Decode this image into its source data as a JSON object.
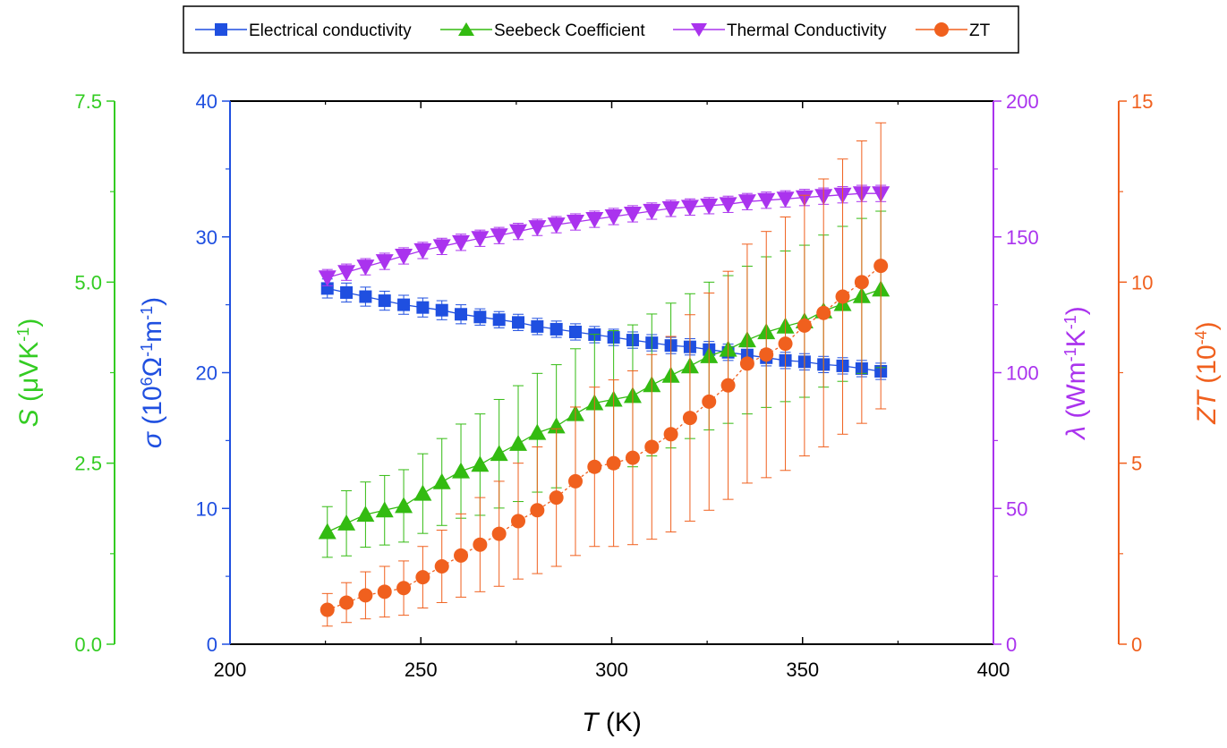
{
  "chart_data": {
    "type": "scatter",
    "x": [
      225.5,
      230.5,
      235.5,
      240.5,
      245.5,
      250.5,
      255.5,
      260.5,
      265.5,
      270.5,
      275.5,
      280.5,
      285.5,
      290.5,
      295.5,
      300.5,
      305.5,
      310.5,
      315.5,
      320.5,
      325.5,
      330.5,
      335.5,
      340.5,
      345.5,
      350.5,
      355.5,
      360.5,
      365.5,
      370.5
    ],
    "xlabel": {
      "italic": "T",
      "rest": " (K)"
    },
    "xlim": [
      200,
      400
    ],
    "xticks": [
      "200",
      "250",
      "300",
      "350",
      "400"
    ],
    "series": [
      {
        "name": "Electrical conductivity",
        "color": "#1f4fe0",
        "marker": "square",
        "axis": "sigma",
        "values": [
          26.2,
          25.9,
          25.6,
          25.3,
          25.0,
          24.8,
          24.6,
          24.3,
          24.1,
          23.9,
          23.7,
          23.4,
          23.2,
          23.0,
          22.8,
          22.6,
          22.4,
          22.2,
          22.0,
          21.9,
          21.7,
          21.5,
          21.3,
          21.1,
          20.9,
          20.8,
          20.6,
          20.5,
          20.3,
          20.1
        ],
        "errors": [
          0.7,
          0.7,
          0.7,
          0.7,
          0.7,
          0.7,
          0.7,
          0.7,
          0.6,
          0.6,
          0.6,
          0.6,
          0.6,
          0.6,
          0.6,
          0.6,
          0.6,
          0.6,
          0.6,
          0.6,
          0.6,
          0.6,
          0.6,
          0.6,
          0.6,
          0.6,
          0.6,
          0.6,
          0.6,
          0.6
        ]
      },
      {
        "name": "Seebeck Coefficient",
        "color": "#33bb11",
        "marker": "triangle-up",
        "axis": "S",
        "values": [
          1.55,
          1.67,
          1.79,
          1.85,
          1.91,
          2.08,
          2.24,
          2.39,
          2.48,
          2.63,
          2.77,
          2.92,
          3.01,
          3.18,
          3.33,
          3.38,
          3.43,
          3.58,
          3.71,
          3.84,
          3.98,
          4.07,
          4.2,
          4.31,
          4.39,
          4.46,
          4.6,
          4.7,
          4.81,
          4.9
        ],
        "errors": [
          0.35,
          0.45,
          0.45,
          0.48,
          0.5,
          0.55,
          0.6,
          0.65,
          0.7,
          0.75,
          0.8,
          0.82,
          0.85,
          0.9,
          0.95,
          0.95,
          0.98,
          0.98,
          1.0,
          1.0,
          1.02,
          1.02,
          1.02,
          1.04,
          1.04,
          1.05,
          1.05,
          1.07,
          1.07,
          1.08
        ]
      },
      {
        "name": "Thermal Conductivity",
        "color": "#aa33ee",
        "marker": "triangle-down",
        "axis": "lambda",
        "values": [
          135,
          137,
          139,
          141,
          143,
          145,
          146.5,
          148,
          149.5,
          150.5,
          152,
          153.5,
          154.5,
          155.5,
          156.5,
          157.5,
          158.5,
          159.5,
          160.5,
          161,
          161.5,
          162,
          163,
          163.5,
          164,
          164.5,
          165,
          165.5,
          166,
          166
        ],
        "errors": [
          3,
          3,
          3,
          3,
          3,
          3,
          3,
          3,
          3,
          3,
          3,
          3,
          3,
          3,
          3,
          3,
          3,
          3,
          3,
          3,
          3,
          3,
          3,
          3,
          3,
          3,
          3,
          3,
          3,
          3
        ]
      },
      {
        "name": "ZT",
        "color": "#f0601e",
        "marker": "circle",
        "axis": "ZT",
        "values": [
          0.95,
          1.15,
          1.35,
          1.45,
          1.55,
          1.85,
          2.15,
          2.45,
          2.75,
          3.05,
          3.4,
          3.7,
          4.05,
          4.5,
          4.9,
          5.0,
          5.15,
          5.45,
          5.8,
          6.25,
          6.7,
          7.15,
          7.75,
          8.0,
          8.3,
          8.8,
          9.15,
          9.6,
          10.0,
          10.45
        ],
        "errors": [
          0.45,
          0.55,
          0.65,
          0.7,
          0.75,
          0.85,
          1.0,
          1.15,
          1.3,
          1.45,
          1.6,
          1.75,
          1.9,
          2.05,
          2.2,
          2.3,
          2.4,
          2.55,
          2.7,
          2.85,
          3.0,
          3.15,
          3.3,
          3.4,
          3.5,
          3.6,
          3.7,
          3.8,
          3.9,
          3.95
        ]
      }
    ],
    "axes": [
      {
        "id": "S",
        "color": "#33cc22",
        "side": "far-left",
        "ylim": [
          0,
          7.5
        ],
        "ticks": [
          "0.0",
          "2.5",
          "5.0",
          "7.5"
        ],
        "label_italic": "S",
        "label_rest": " (μVK",
        "label_sup": "-1",
        "label_end": ")"
      },
      {
        "id": "sigma",
        "color": "#1f4fe0",
        "side": "left",
        "ylim": [
          0,
          40
        ],
        "ticks": [
          "0",
          "10",
          "20",
          "30",
          "40"
        ],
        "label_italic": "σ",
        "label_rest": " (10",
        "label_sup": "6",
        "label_mid": "Ω",
        "label_sup2": "-1",
        "label_mid2": "m",
        "label_sup3": "-1",
        "label_end": ")"
      },
      {
        "id": "lambda",
        "color": "#aa33ee",
        "side": "right",
        "ylim": [
          0,
          200
        ],
        "ticks": [
          "0",
          "50",
          "100",
          "150",
          "200"
        ],
        "label_italic": "λ",
        "label_rest": " (Wm",
        "label_sup": "-1",
        "label_mid": "K",
        "label_sup2": "-1",
        "label_end": ")"
      },
      {
        "id": "ZT",
        "color": "#f0601e",
        "side": "far-right",
        "ylim": [
          0,
          15
        ],
        "ticks": [
          "0",
          "5",
          "10",
          "15"
        ],
        "label_italic": "ZT",
        "label_rest": " (10",
        "label_sup": "-4",
        "label_end": ")"
      }
    ],
    "legend": {
      "position": "top-center"
    }
  }
}
